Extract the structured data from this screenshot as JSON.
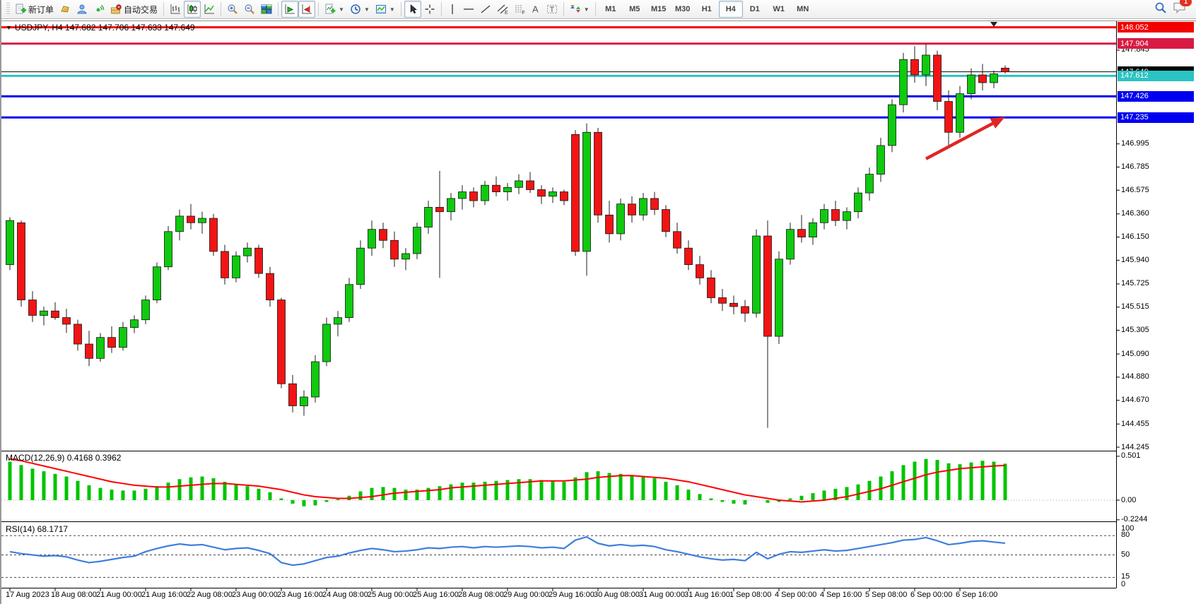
{
  "toolbar": {
    "new_order_label": "新订单",
    "autotrading_label": "自动交易",
    "timeframes": [
      "M1",
      "M5",
      "M15",
      "M30",
      "H1",
      "H4",
      "D1",
      "W1",
      "MN"
    ],
    "active_timeframe": "H4",
    "notification_count": "1"
  },
  "chart": {
    "title": "USDJPY, H4  147.682 147.706 147.633 147.649",
    "symbol": "USDJPY",
    "period": "H4",
    "ohlc": {
      "open": "147.682",
      "high": "147.706",
      "low": "147.633",
      "close": "147.649"
    }
  },
  "price_axis": {
    "ticks": [
      {
        "price": 147.845,
        "label": "147.845"
      },
      {
        "price": 146.995,
        "label": "146.995"
      },
      {
        "price": 146.785,
        "label": "146.785"
      },
      {
        "price": 146.575,
        "label": "146.575"
      },
      {
        "price": 146.36,
        "label": "146.360"
      },
      {
        "price": 146.15,
        "label": "146.150"
      },
      {
        "price": 145.94,
        "label": "145.940"
      },
      {
        "price": 145.725,
        "label": "145.725"
      },
      {
        "price": 145.515,
        "label": "145.515"
      },
      {
        "price": 145.305,
        "label": "145.305"
      },
      {
        "price": 145.09,
        "label": "145.090"
      },
      {
        "price": 144.88,
        "label": "144.880"
      },
      {
        "price": 144.67,
        "label": "144.670"
      },
      {
        "price": 144.455,
        "label": "144.455"
      },
      {
        "price": 144.245,
        "label": "144.245"
      }
    ],
    "badges": [
      {
        "price": 148.052,
        "label": "148.052",
        "color": "#f30000",
        "line_width": 3
      },
      {
        "price": 147.904,
        "label": "147.904",
        "color": "#d81b44",
        "line_width": 3
      },
      {
        "price": 147.649,
        "label": "147.649",
        "color": "#000000",
        "line_width": 1
      },
      {
        "price": 147.612,
        "label": "147.612",
        "color": "#2cc3c3",
        "line_width": 3
      },
      {
        "price": 147.426,
        "label": "147.426",
        "color": "#0000f0",
        "line_width": 3
      },
      {
        "price": 147.235,
        "label": "147.235",
        "color": "#0000f0",
        "line_width": 3
      }
    ]
  },
  "chart_data": {
    "type": "candlestick",
    "title": "USDJPY H4",
    "ylim": [
      144.213,
      148.101
    ],
    "up_color": "#0fca0f",
    "down_color": "#f21414",
    "x_label_every": 4,
    "x_labels": [
      "17 Aug 2023",
      "18 Aug 08:00",
      "21 Aug 00:00",
      "21 Aug 16:00",
      "22 Aug 08:00",
      "23 Aug 00:00",
      "23 Aug 16:00",
      "24 Aug 08:00",
      "25 Aug 00:00",
      "25 Aug 16:00",
      "28 Aug 08:00",
      "29 Aug 00:00",
      "29 Aug 16:00",
      "30 Aug 08:00",
      "31 Aug 00:00",
      "31 Aug 16:00",
      "1 Sep 08:00",
      "4 Sep 00:00",
      "4 Sep 16:00",
      "5 Sep 08:00",
      "6 Sep 00:00",
      "6 Sep 16:00"
    ],
    "candles": [
      [
        145.9,
        146.33,
        145.85,
        146.3
      ],
      [
        146.28,
        146.3,
        145.52,
        145.58
      ],
      [
        145.58,
        145.66,
        145.38,
        145.44
      ],
      [
        145.44,
        145.52,
        145.35,
        145.48
      ],
      [
        145.48,
        145.56,
        145.4,
        145.42
      ],
      [
        145.42,
        145.5,
        145.28,
        145.36
      ],
      [
        145.36,
        145.4,
        145.12,
        145.18
      ],
      [
        145.18,
        145.3,
        144.98,
        145.05
      ],
      [
        145.05,
        145.28,
        145.02,
        145.24
      ],
      [
        145.24,
        145.34,
        145.1,
        145.15
      ],
      [
        145.15,
        145.38,
        145.12,
        145.33
      ],
      [
        145.33,
        145.44,
        145.28,
        145.4
      ],
      [
        145.4,
        145.62,
        145.36,
        145.58
      ],
      [
        145.58,
        145.92,
        145.55,
        145.88
      ],
      [
        145.88,
        146.25,
        145.85,
        146.2
      ],
      [
        146.2,
        146.4,
        146.12,
        146.34
      ],
      [
        146.34,
        146.45,
        146.22,
        146.28
      ],
      [
        146.28,
        146.38,
        146.18,
        146.32
      ],
      [
        146.32,
        146.36,
        145.98,
        146.02
      ],
      [
        146.02,
        146.08,
        145.72,
        145.78
      ],
      [
        145.78,
        146.02,
        145.74,
        145.98
      ],
      [
        145.98,
        146.1,
        145.92,
        146.05
      ],
      [
        146.05,
        146.08,
        145.78,
        145.82
      ],
      [
        145.82,
        145.88,
        145.52,
        145.58
      ],
      [
        145.58,
        145.6,
        144.78,
        144.82
      ],
      [
        144.82,
        144.9,
        144.56,
        144.62
      ],
      [
        144.62,
        144.76,
        144.53,
        144.7
      ],
      [
        144.7,
        145.08,
        144.65,
        145.02
      ],
      [
        145.02,
        145.42,
        144.98,
        145.36
      ],
      [
        145.36,
        145.48,
        145.25,
        145.42
      ],
      [
        145.42,
        145.78,
        145.38,
        145.72
      ],
      [
        145.72,
        146.12,
        145.68,
        146.05
      ],
      [
        146.05,
        146.3,
        145.98,
        146.22
      ],
      [
        146.22,
        146.28,
        146.05,
        146.12
      ],
      [
        146.12,
        146.2,
        145.88,
        145.95
      ],
      [
        145.95,
        146.05,
        145.85,
        146.0
      ],
      [
        146.0,
        146.28,
        145.95,
        146.24
      ],
      [
        146.24,
        146.48,
        146.18,
        146.42
      ],
      [
        146.42,
        146.75,
        145.78,
        146.38
      ],
      [
        146.38,
        146.55,
        146.3,
        146.5
      ],
      [
        146.5,
        146.62,
        146.4,
        146.56
      ],
      [
        146.56,
        146.6,
        146.42,
        146.48
      ],
      [
        146.48,
        146.66,
        146.44,
        146.62
      ],
      [
        146.62,
        146.7,
        146.52,
        146.56
      ],
      [
        146.56,
        146.64,
        146.48,
        146.6
      ],
      [
        146.6,
        146.72,
        146.54,
        146.66
      ],
      [
        146.66,
        146.74,
        146.55,
        146.58
      ],
      [
        146.58,
        146.62,
        146.45,
        146.52
      ],
      [
        146.52,
        146.6,
        146.46,
        146.56
      ],
      [
        146.56,
        146.58,
        146.44,
        146.48
      ],
      [
        147.08,
        147.12,
        145.98,
        146.02
      ],
      [
        146.02,
        147.18,
        145.8,
        147.1
      ],
      [
        147.1,
        147.14,
        146.28,
        146.35
      ],
      [
        146.35,
        146.48,
        146.1,
        146.18
      ],
      [
        146.18,
        146.5,
        146.12,
        146.45
      ],
      [
        146.45,
        146.52,
        146.28,
        146.35
      ],
      [
        146.35,
        146.55,
        146.3,
        146.5
      ],
      [
        146.5,
        146.56,
        146.35,
        146.4
      ],
      [
        146.4,
        146.44,
        146.15,
        146.2
      ],
      [
        146.2,
        146.28,
        146.0,
        146.05
      ],
      [
        146.05,
        146.12,
        145.85,
        145.9
      ],
      [
        145.9,
        145.98,
        145.72,
        145.78
      ],
      [
        145.78,
        145.85,
        145.55,
        145.6
      ],
      [
        145.6,
        145.68,
        145.48,
        145.55
      ],
      [
        145.55,
        145.62,
        145.45,
        145.52
      ],
      [
        145.52,
        145.58,
        145.38,
        145.46
      ],
      [
        145.46,
        146.22,
        145.42,
        146.16
      ],
      [
        146.16,
        146.3,
        144.42,
        145.25
      ],
      [
        145.25,
        146.02,
        145.18,
        145.95
      ],
      [
        145.95,
        146.28,
        145.9,
        146.22
      ],
      [
        146.22,
        146.35,
        146.1,
        146.15
      ],
      [
        146.15,
        146.32,
        146.08,
        146.28
      ],
      [
        146.28,
        146.45,
        146.22,
        146.4
      ],
      [
        146.4,
        146.48,
        146.25,
        146.3
      ],
      [
        146.3,
        146.42,
        146.22,
        146.38
      ],
      [
        146.38,
        146.6,
        146.32,
        146.55
      ],
      [
        146.55,
        146.78,
        146.48,
        146.72
      ],
      [
        146.72,
        147.05,
        146.65,
        146.98
      ],
      [
        146.98,
        147.4,
        146.92,
        147.35
      ],
      [
        147.35,
        147.82,
        147.28,
        147.76
      ],
      [
        147.76,
        147.88,
        147.55,
        147.62
      ],
      [
        147.62,
        147.9,
        147.52,
        147.8
      ],
      [
        147.8,
        147.84,
        147.3,
        147.38
      ],
      [
        147.38,
        147.48,
        146.98,
        147.1
      ],
      [
        147.1,
        147.52,
        147.05,
        147.45
      ],
      [
        147.45,
        147.68,
        147.4,
        147.62
      ],
      [
        147.62,
        147.72,
        147.48,
        147.55
      ],
      [
        147.55,
        147.66,
        147.5,
        147.63
      ],
      [
        147.682,
        147.706,
        147.633,
        147.649
      ]
    ],
    "indicators": {
      "macd": {
        "label": "MACD(12,26,9) 0.4168 0.3962",
        "params": "12,26,9",
        "values": "0.4168 0.3962",
        "axis_labels": [
          {
            "value": 0.501,
            "label": "0.501"
          },
          {
            "value": 0.0,
            "label": "0.00"
          },
          {
            "value": -0.2244,
            "label": "-0.2244"
          }
        ],
        "histogram_color": "#00c400",
        "signal_color": "#ff0000",
        "histogram": [
          0.44,
          0.4,
          0.36,
          0.33,
          0.3,
          0.27,
          0.22,
          0.17,
          0.14,
          0.12,
          0.11,
          0.11,
          0.13,
          0.16,
          0.2,
          0.24,
          0.26,
          0.27,
          0.25,
          0.21,
          0.18,
          0.16,
          0.13,
          0.09,
          0.02,
          -0.04,
          -0.07,
          -0.06,
          -0.02,
          0.01,
          0.05,
          0.1,
          0.14,
          0.15,
          0.14,
          0.12,
          0.12,
          0.14,
          0.16,
          0.18,
          0.2,
          0.2,
          0.21,
          0.22,
          0.23,
          0.24,
          0.24,
          0.23,
          0.22,
          0.21,
          0.26,
          0.32,
          0.33,
          0.31,
          0.3,
          0.28,
          0.27,
          0.25,
          0.21,
          0.17,
          0.12,
          0.07,
          0.02,
          -0.02,
          -0.04,
          -0.05,
          0.0,
          -0.03,
          -0.02,
          0.02,
          0.05,
          0.08,
          0.11,
          0.13,
          0.15,
          0.18,
          0.22,
          0.27,
          0.33,
          0.4,
          0.44,
          0.47,
          0.46,
          0.42,
          0.41,
          0.43,
          0.45,
          0.44,
          0.4168
        ],
        "signal": [
          0.47,
          0.45,
          0.42,
          0.39,
          0.36,
          0.33,
          0.3,
          0.27,
          0.24,
          0.21,
          0.19,
          0.17,
          0.16,
          0.15,
          0.15,
          0.16,
          0.17,
          0.18,
          0.19,
          0.19,
          0.18,
          0.17,
          0.16,
          0.14,
          0.12,
          0.09,
          0.06,
          0.04,
          0.03,
          0.02,
          0.02,
          0.03,
          0.04,
          0.06,
          0.08,
          0.09,
          0.1,
          0.11,
          0.12,
          0.14,
          0.15,
          0.16,
          0.17,
          0.18,
          0.19,
          0.2,
          0.21,
          0.22,
          0.22,
          0.22,
          0.23,
          0.24,
          0.26,
          0.27,
          0.28,
          0.28,
          0.27,
          0.26,
          0.25,
          0.23,
          0.21,
          0.18,
          0.15,
          0.12,
          0.09,
          0.06,
          0.04,
          0.02,
          0.0,
          -0.01,
          -0.02,
          -0.01,
          0.0,
          0.02,
          0.04,
          0.07,
          0.1,
          0.13,
          0.17,
          0.21,
          0.25,
          0.29,
          0.32,
          0.34,
          0.36,
          0.37,
          0.38,
          0.39,
          0.3962
        ]
      },
      "rsi": {
        "label": "RSI(14) 68.1717",
        "period": "14",
        "value": "68.1717",
        "line_color": "#3f7ede",
        "axis_labels": [
          {
            "value": 100,
            "label": "100"
          },
          {
            "value": 0,
            "label": "0"
          }
        ],
        "levels": [
          80,
          50,
          15
        ],
        "series": [
          55,
          52,
          50,
          48,
          49,
          47,
          42,
          38,
          40,
          43,
          46,
          48,
          55,
          60,
          64,
          67,
          65,
          66,
          62,
          58,
          60,
          61,
          57,
          52,
          38,
          34,
          36,
          41,
          46,
          48,
          53,
          57,
          60,
          58,
          55,
          56,
          58,
          61,
          60,
          62,
          63,
          61,
          63,
          62,
          63,
          64,
          63,
          61,
          62,
          60,
          73,
          78,
          68,
          64,
          66,
          64,
          65,
          63,
          58,
          55,
          51,
          47,
          44,
          42,
          43,
          41,
          54,
          44,
          51,
          55,
          54,
          56,
          58,
          56,
          57,
          60,
          63,
          66,
          69,
          73,
          74,
          77,
          72,
          66,
          68,
          71,
          72,
          70,
          68.17
        ]
      }
    },
    "annotations": {
      "arrow": {
        "from_index": 81,
        "from_price": 146.86,
        "to_index": 88,
        "to_price": 147.24,
        "color": "#e02525"
      },
      "shift_marker_index": 87
    }
  }
}
